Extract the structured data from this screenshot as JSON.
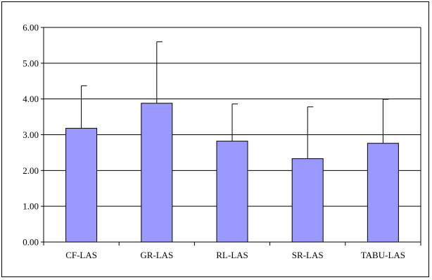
{
  "chart_data": {
    "type": "bar",
    "title": "",
    "xlabel": "",
    "ylabel": "",
    "categories": [
      "CF-LAS",
      "GR-LAS",
      "RL-LAS",
      "SR-LAS",
      "TABU-LAS"
    ],
    "series": [
      {
        "values": [
          3.18,
          3.88,
          2.82,
          2.33,
          2.76
        ],
        "error_upper": [
          4.37,
          5.6,
          3.86,
          3.78,
          3.99
        ]
      }
    ],
    "ylim": [
      0,
      6
    ],
    "yticks": [
      "0.00",
      "1.00",
      "2.00",
      "3.00",
      "4.00",
      "5.00",
      "6.00"
    ],
    "grid": true,
    "legend": "none",
    "colors": {
      "bar_fill": "#9999ff",
      "bar_stroke": "#000000",
      "grid": "#000000",
      "error_bar": "#000000"
    }
  }
}
